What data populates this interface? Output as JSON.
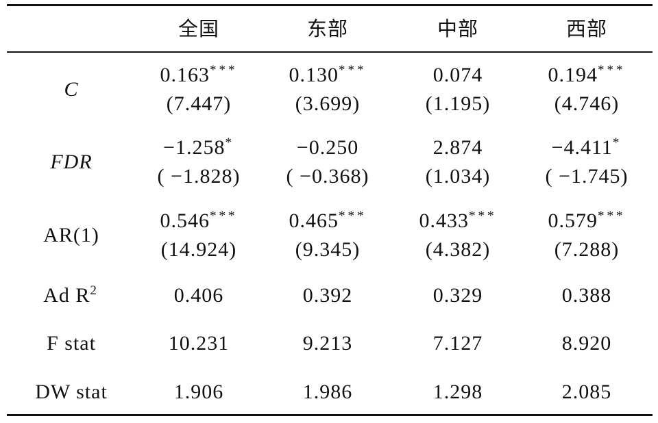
{
  "header": {
    "columns": [
      "全国",
      "东部",
      "中部",
      "西部"
    ]
  },
  "rows": [
    {
      "label": "C",
      "italic": true,
      "cells": [
        {
          "value": "0.163",
          "stars": "***",
          "t": "(7.447)"
        },
        {
          "value": "0.130",
          "stars": "***",
          "t": "(3.699)"
        },
        {
          "value": "0.074",
          "t": "(1.195)"
        },
        {
          "value": "0.194",
          "stars": "***",
          "t": "(4.746)"
        }
      ]
    },
    {
      "label": "FDR",
      "italic": true,
      "cells": [
        {
          "value": "−1.258",
          "stars": "*",
          "t": "( −1.828)"
        },
        {
          "value": "−0.250",
          "t": "( −0.368)"
        },
        {
          "value": "2.874",
          "t": "(1.034)"
        },
        {
          "value": "−4.411",
          "stars": "*",
          "t": "( −1.745)"
        }
      ]
    },
    {
      "label": "AR(1)",
      "cells": [
        {
          "value": "0.546",
          "stars": "***",
          "t": "(14.924)"
        },
        {
          "value": "0.465",
          "stars": "***",
          "t": "(9.345)"
        },
        {
          "value": "0.433",
          "stars": "***",
          "t": "(4.382)"
        },
        {
          "value": "0.579",
          "stars": "***",
          "t": "(7.288)"
        }
      ]
    },
    {
      "label": "Ad R",
      "label_sup": "2",
      "cells": [
        {
          "value": "0.406"
        },
        {
          "value": "0.392"
        },
        {
          "value": "0.329"
        },
        {
          "value": "0.388"
        }
      ]
    },
    {
      "label": "F stat",
      "cells": [
        {
          "value": "10.231"
        },
        {
          "value": "9.213"
        },
        {
          "value": "7.127"
        },
        {
          "value": "8.920"
        }
      ]
    },
    {
      "label": "DW stat",
      "cells": [
        {
          "value": "1.906"
        },
        {
          "value": "1.986"
        },
        {
          "value": "1.298"
        },
        {
          "value": "2.085"
        }
      ]
    }
  ]
}
